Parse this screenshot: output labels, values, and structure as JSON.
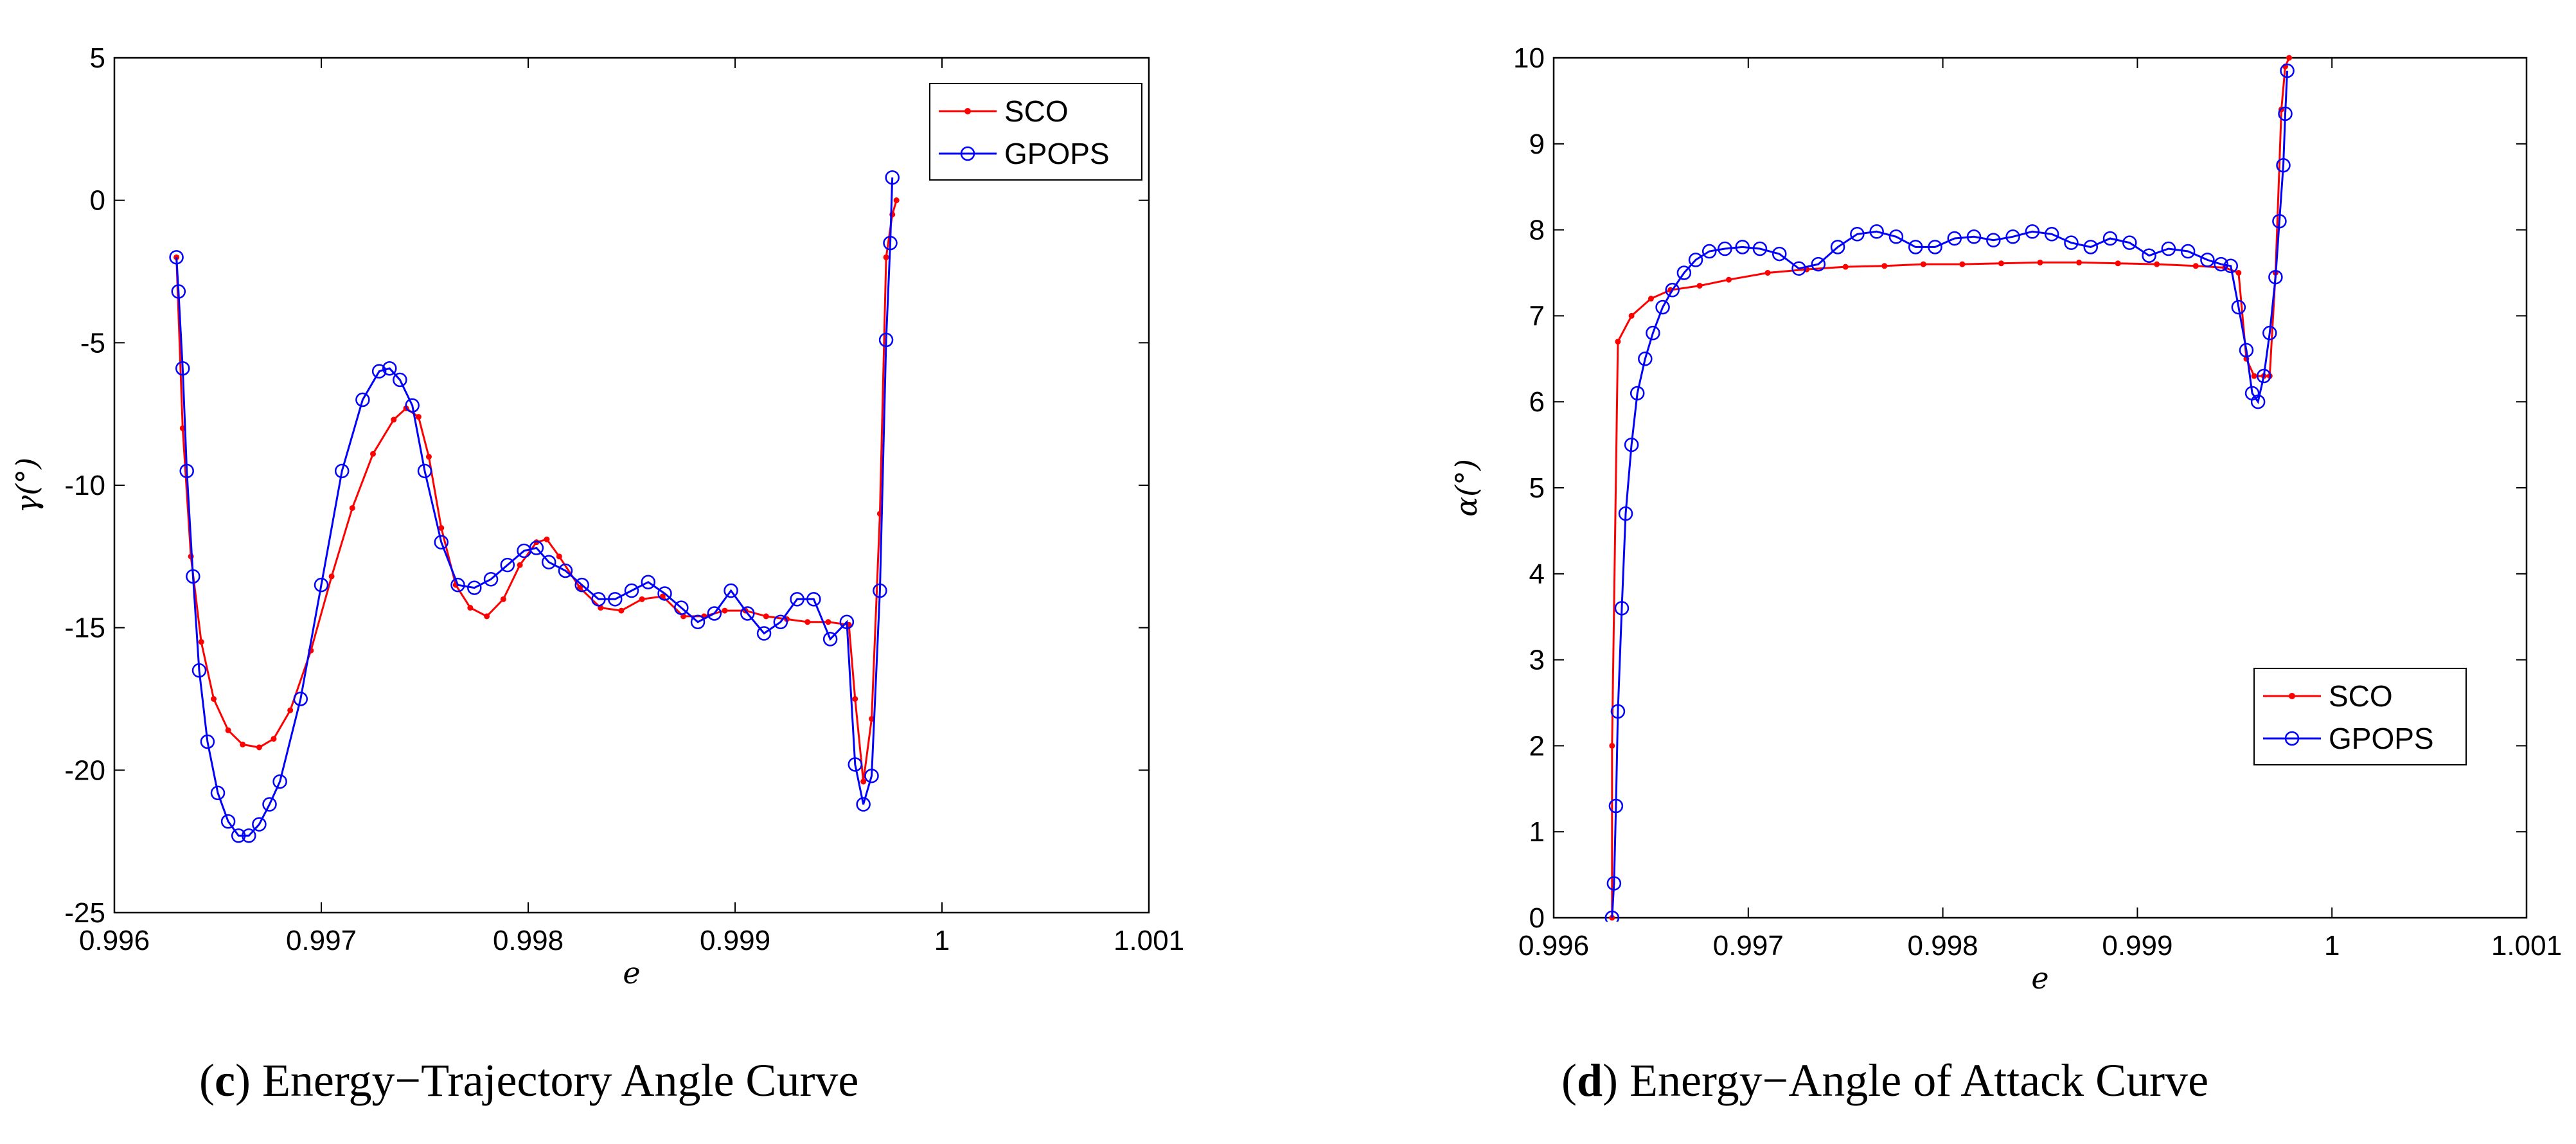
{
  "chart_data": [
    {
      "id": "c",
      "type": "line",
      "caption_letter": "c",
      "caption_text": "Energy−Trajectory Angle Curve",
      "xlabel": "e",
      "ylabel": "γ(°)",
      "xlim": [
        0.996,
        1.001
      ],
      "ylim": [
        -25,
        5
      ],
      "xticks": [
        "0.996",
        "0.997",
        "0.998",
        "0.999",
        "1",
        "1.001"
      ],
      "xtick_values": [
        0.996,
        0.997,
        0.998,
        0.999,
        1.0,
        1.001
      ],
      "yticks": [
        "5",
        "0",
        "-5",
        "-10",
        "-15",
        "-20",
        "-25"
      ],
      "ytick_values": [
        5,
        0,
        -5,
        -10,
        -15,
        -20,
        -25
      ],
      "legend_position": "top-right",
      "series": [
        {
          "name": "SCO",
          "color": "#ff0000",
          "marker": "point",
          "x": [
            0.9963,
            0.99633,
            0.99637,
            0.99642,
            0.99648,
            0.99655,
            0.99662,
            0.9967,
            0.99677,
            0.99685,
            0.99695,
            0.99705,
            0.99715,
            0.99725,
            0.99735,
            0.99741,
            0.99747,
            0.99752,
            0.99758,
            0.99765,
            0.99772,
            0.9978,
            0.99788,
            0.99796,
            0.99804,
            0.99809,
            0.99815,
            0.99825,
            0.99835,
            0.99845,
            0.99855,
            0.99865,
            0.99875,
            0.99885,
            0.99895,
            0.99905,
            0.99915,
            0.99925,
            0.99935,
            0.99945,
            0.99955,
            0.99958,
            0.99962,
            0.99966,
            0.9997,
            0.99973,
            0.99976,
            0.99978
          ],
          "y": [
            -2.0,
            -8.0,
            -12.5,
            -15.5,
            -17.5,
            -18.6,
            -19.1,
            -19.2,
            -18.9,
            -17.9,
            -15.8,
            -13.2,
            -10.8,
            -8.9,
            -7.7,
            -7.3,
            -7.6,
            -9.0,
            -11.5,
            -13.5,
            -14.3,
            -14.6,
            -14.0,
            -12.8,
            -12.0,
            -11.9,
            -12.5,
            -13.6,
            -14.3,
            -14.4,
            -14.0,
            -13.9,
            -14.6,
            -14.6,
            -14.4,
            -14.4,
            -14.6,
            -14.7,
            -14.8,
            -14.8,
            -14.9,
            -17.5,
            -20.4,
            -18.2,
            -11.0,
            -2.0,
            -0.5,
            0.0
          ]
        },
        {
          "name": "GPOPS",
          "color": "#0000ff",
          "marker": "circle",
          "x": [
            0.9963,
            0.99631,
            0.99633,
            0.99635,
            0.99638,
            0.99641,
            0.99645,
            0.9965,
            0.99655,
            0.9966,
            0.99665,
            0.9967,
            0.99675,
            0.9968,
            0.9969,
            0.997,
            0.9971,
            0.9972,
            0.99728,
            0.99733,
            0.99738,
            0.99744,
            0.9975,
            0.99758,
            0.99766,
            0.99774,
            0.99782,
            0.9979,
            0.99798,
            0.99804,
            0.9981,
            0.99818,
            0.99826,
            0.99834,
            0.99842,
            0.9985,
            0.99858,
            0.99866,
            0.99874,
            0.99882,
            0.9989,
            0.99898,
            0.99906,
            0.99914,
            0.99922,
            0.9993,
            0.99938,
            0.99946,
            0.99954,
            0.99958,
            0.99962,
            0.99966,
            0.9997,
            0.99973,
            0.99975,
            0.99976
          ],
          "y": [
            -2.0,
            -3.2,
            -5.9,
            -9.5,
            -13.2,
            -16.5,
            -19.0,
            -20.8,
            -21.8,
            -22.3,
            -22.3,
            -21.9,
            -21.2,
            -20.4,
            -17.5,
            -13.5,
            -9.5,
            -7.0,
            -6.0,
            -5.9,
            -6.3,
            -7.2,
            -9.5,
            -12.0,
            -13.5,
            -13.6,
            -13.3,
            -12.8,
            -12.3,
            -12.2,
            -12.7,
            -13.0,
            -13.5,
            -14.0,
            -14.0,
            -13.7,
            -13.4,
            -13.8,
            -14.3,
            -14.8,
            -14.5,
            -13.7,
            -14.5,
            -15.2,
            -14.8,
            -14.0,
            -14.0,
            -15.4,
            -14.8,
            -19.8,
            -21.2,
            -20.2,
            -13.7,
            -4.9,
            -1.5,
            0.8
          ]
        }
      ]
    },
    {
      "id": "d",
      "type": "line",
      "caption_letter": "d",
      "caption_text": "Energy−Angle of Attack Curve",
      "xlabel": "e",
      "ylabel": "α(°)",
      "xlim": [
        0.996,
        1.001
      ],
      "ylim": [
        0,
        10
      ],
      "xticks": [
        "0.996",
        "0.997",
        "0.998",
        "0.999",
        "1",
        "1.001"
      ],
      "xtick_values": [
        0.996,
        0.997,
        0.998,
        0.999,
        1.0,
        1.001
      ],
      "yticks": [
        "10",
        "9",
        "8",
        "7",
        "6",
        "5",
        "4",
        "3",
        "2",
        "1",
        "0"
      ],
      "ytick_values": [
        10,
        9,
        8,
        7,
        6,
        5,
        4,
        3,
        2,
        1,
        0
      ],
      "legend_position": "lower-right",
      "series": [
        {
          "name": "SCO",
          "color": "#ff0000",
          "marker": "point",
          "x": [
            0.9963,
            0.9963,
            0.99633,
            0.9964,
            0.9965,
            0.9966,
            0.99675,
            0.9969,
            0.9971,
            0.9973,
            0.9975,
            0.9977,
            0.9979,
            0.9981,
            0.9983,
            0.9985,
            0.9987,
            0.9989,
            0.9991,
            0.9993,
            0.99945,
            0.99952,
            0.99956,
            0.9996,
            0.99965,
            0.99968,
            0.99971,
            0.99974,
            0.99976,
            0.99978
          ],
          "y": [
            0.0,
            2.0,
            6.7,
            7.0,
            7.2,
            7.3,
            7.35,
            7.42,
            7.5,
            7.54,
            7.57,
            7.58,
            7.6,
            7.6,
            7.61,
            7.62,
            7.62,
            7.61,
            7.6,
            7.58,
            7.56,
            7.5,
            6.5,
            6.3,
            6.3,
            6.3,
            7.5,
            9.4,
            9.9,
            10.0
          ]
        },
        {
          "name": "GPOPS",
          "color": "#0000ff",
          "marker": "circle",
          "x": [
            0.9963,
            0.99631,
            0.99632,
            0.99633,
            0.99635,
            0.99637,
            0.9964,
            0.99643,
            0.99647,
            0.99651,
            0.99656,
            0.99661,
            0.99667,
            0.99673,
            0.9968,
            0.99688,
            0.99697,
            0.99706,
            0.99716,
            0.99726,
            0.99736,
            0.99746,
            0.99756,
            0.99766,
            0.99776,
            0.99786,
            0.99796,
            0.99806,
            0.99816,
            0.99826,
            0.99836,
            0.99846,
            0.99856,
            0.99866,
            0.99876,
            0.99886,
            0.99896,
            0.99906,
            0.99916,
            0.99926,
            0.99936,
            0.99943,
            0.99948,
            0.99952,
            0.99956,
            0.99959,
            0.99962,
            0.99965,
            0.99968,
            0.99971,
            0.99973,
            0.99975,
            0.99976,
            0.99977
          ],
          "y": [
            0.0,
            0.4,
            1.3,
            2.4,
            3.6,
            4.7,
            5.5,
            6.1,
            6.5,
            6.8,
            7.1,
            7.3,
            7.5,
            7.65,
            7.75,
            7.78,
            7.8,
            7.78,
            7.72,
            7.55,
            7.6,
            7.8,
            7.95,
            7.98,
            7.92,
            7.8,
            7.8,
            7.9,
            7.92,
            7.88,
            7.92,
            7.98,
            7.95,
            7.85,
            7.8,
            7.9,
            7.85,
            7.7,
            7.78,
            7.75,
            7.65,
            7.6,
            7.58,
            7.1,
            6.6,
            6.1,
            6.0,
            6.3,
            6.8,
            7.45,
            8.1,
            8.75,
            9.35,
            9.85
          ]
        }
      ]
    }
  ]
}
